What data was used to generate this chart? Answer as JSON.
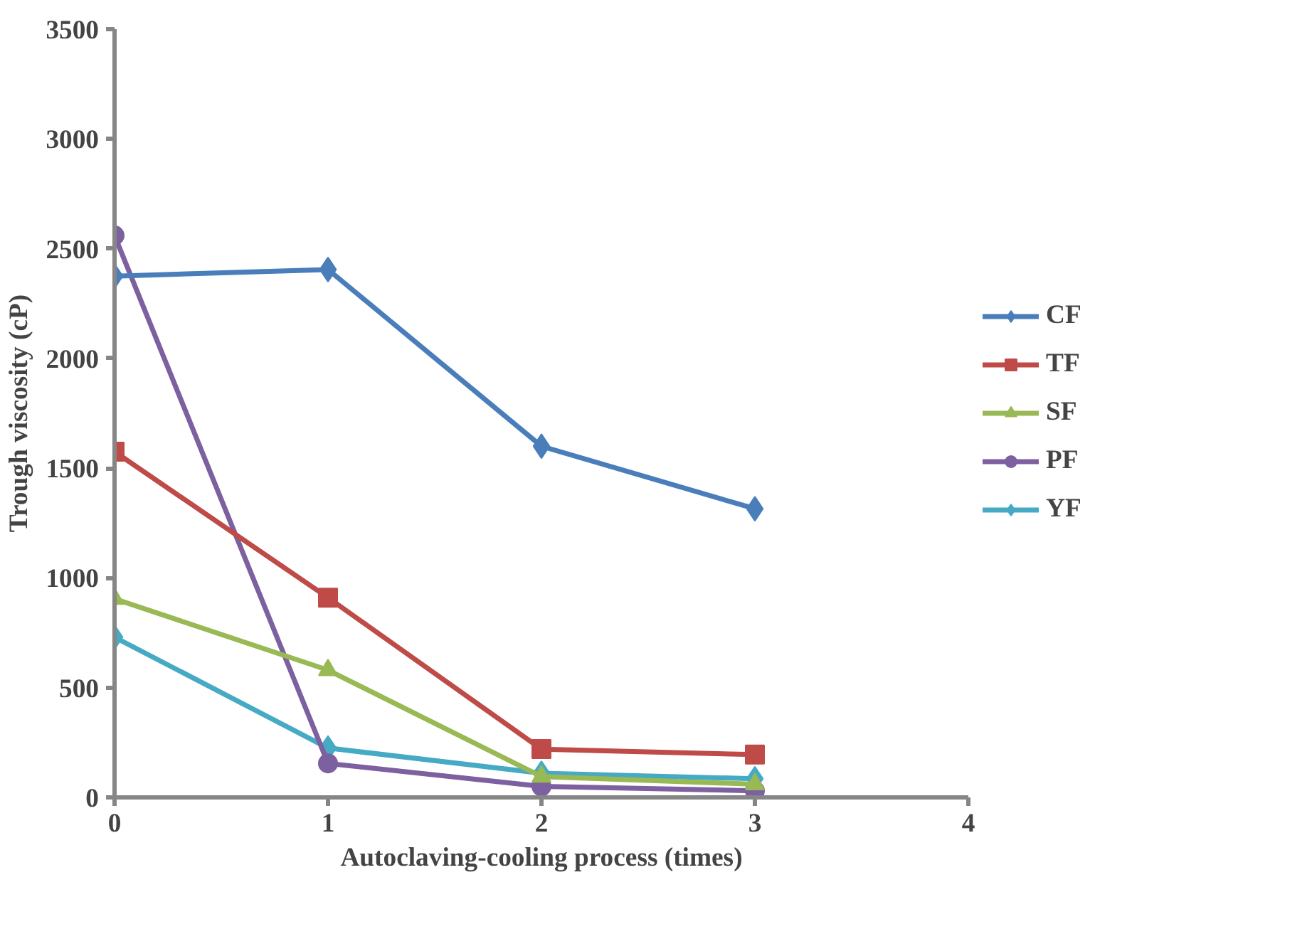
{
  "chart_data": {
    "type": "line",
    "xlabel": "Autoclaving-cooling process (times)",
    "ylabel": "Trough viscosity (cP)",
    "x": [
      0,
      1,
      2,
      3
    ],
    "xlim": [
      0,
      4
    ],
    "xticks": [
      0,
      1,
      2,
      3,
      4
    ],
    "ylim": [
      0,
      3500
    ],
    "yticks": [
      0,
      500,
      1000,
      1500,
      2000,
      2500,
      3000,
      3500
    ],
    "grid": false,
    "legend": "right",
    "line_style": "solid",
    "series": [
      {
        "name": "CF",
        "color": "#4a7ebb",
        "marker": "diamond",
        "values": [
          2375,
          2405,
          1600,
          1315
        ]
      },
      {
        "name": "TF",
        "color": "#be4b48",
        "marker": "square",
        "values": [
          1575,
          910,
          220,
          195
        ]
      },
      {
        "name": "SF",
        "color": "#98b954",
        "marker": "triangle",
        "values": [
          905,
          580,
          95,
          60
        ]
      },
      {
        "name": "PF",
        "color": "#7d60a0",
        "marker": "circle",
        "values": [
          2560,
          155,
          50,
          30
        ]
      },
      {
        "name": "YF",
        "color": "#46aac5",
        "marker": "diamond",
        "values": [
          730,
          225,
          110,
          85
        ]
      }
    ]
  }
}
